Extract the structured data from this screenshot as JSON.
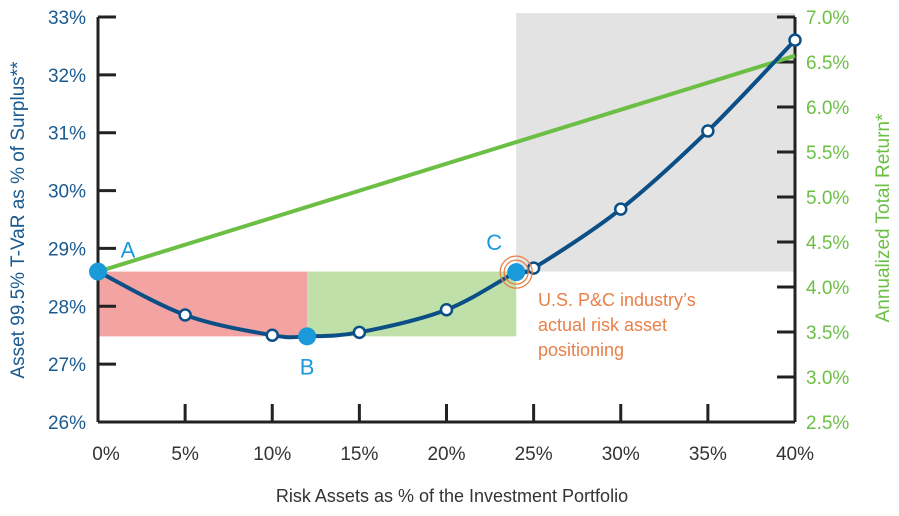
{
  "chart_data": {
    "type": "line",
    "xlabel": "Risk Assets as % of the Investment Portfolio",
    "ylabel_left": "Asset 99.5% T-VaR as % of Surplus**",
    "ylabel_right": "Annualized Total Return*",
    "xlim": [
      0,
      40
    ],
    "ylim_left": [
      26,
      33
    ],
    "ylim_right": [
      2.5,
      7.0
    ],
    "x_ticks": [
      "0%",
      "5%",
      "10%",
      "15%",
      "20%",
      "25%",
      "30%",
      "35%",
      "40%"
    ],
    "y_left_ticks": [
      "26%",
      "27%",
      "28%",
      "29%",
      "30%",
      "31%",
      "32%",
      "33%"
    ],
    "y_right_ticks": [
      "2.5%",
      "3.0%",
      "3.5%",
      "4.0%",
      "4.5%",
      "5.0%",
      "5.5%",
      "6.0%",
      "6.5%",
      "7.0%"
    ],
    "grid": false,
    "series": [
      {
        "axis": "left",
        "color": "#0b4f86",
        "x": [
          0,
          5,
          10,
          12,
          15,
          20,
          24,
          25,
          30,
          35,
          40
        ],
        "y": [
          28.6,
          27.85,
          27.5,
          27.48,
          27.55,
          27.94,
          28.59,
          28.66,
          29.68,
          31.03,
          32.6
        ]
      },
      {
        "axis": "right",
        "color": "#6cbf45",
        "x": [
          0,
          40
        ],
        "y": [
          4.17,
          6.57
        ]
      }
    ],
    "markers_open": [
      5,
      10,
      15,
      20,
      25,
      30,
      35,
      40
    ],
    "key_points": [
      {
        "label": "A",
        "x": 0,
        "y": 28.6
      },
      {
        "label": "B",
        "x": 12,
        "y": 27.48
      },
      {
        "label": "C",
        "x": 24,
        "y": 28.59
      }
    ],
    "regions": [
      {
        "x": [
          0,
          12
        ],
        "y": [
          27.48,
          28.6
        ],
        "color": "#f4a3a3"
      },
      {
        "x": [
          12,
          24
        ],
        "y": [
          27.48,
          28.6
        ],
        "color": "#bfe0a8"
      },
      {
        "x": [
          24,
          40
        ],
        "y": [
          28.6,
          33
        ],
        "color": "#e3e3e3"
      }
    ],
    "annotation": "U.S. P&C industry’s actual risk asset positioning",
    "annotation_lines": [
      "U.S. P&C industry’s",
      "actual risk asset",
      "positioning"
    ],
    "colors": {
      "left_axis": "#1a5a8f",
      "right_axis": "#6cbf45",
      "key_point": "#1a9ad9",
      "annotation": "#e8804a"
    }
  }
}
